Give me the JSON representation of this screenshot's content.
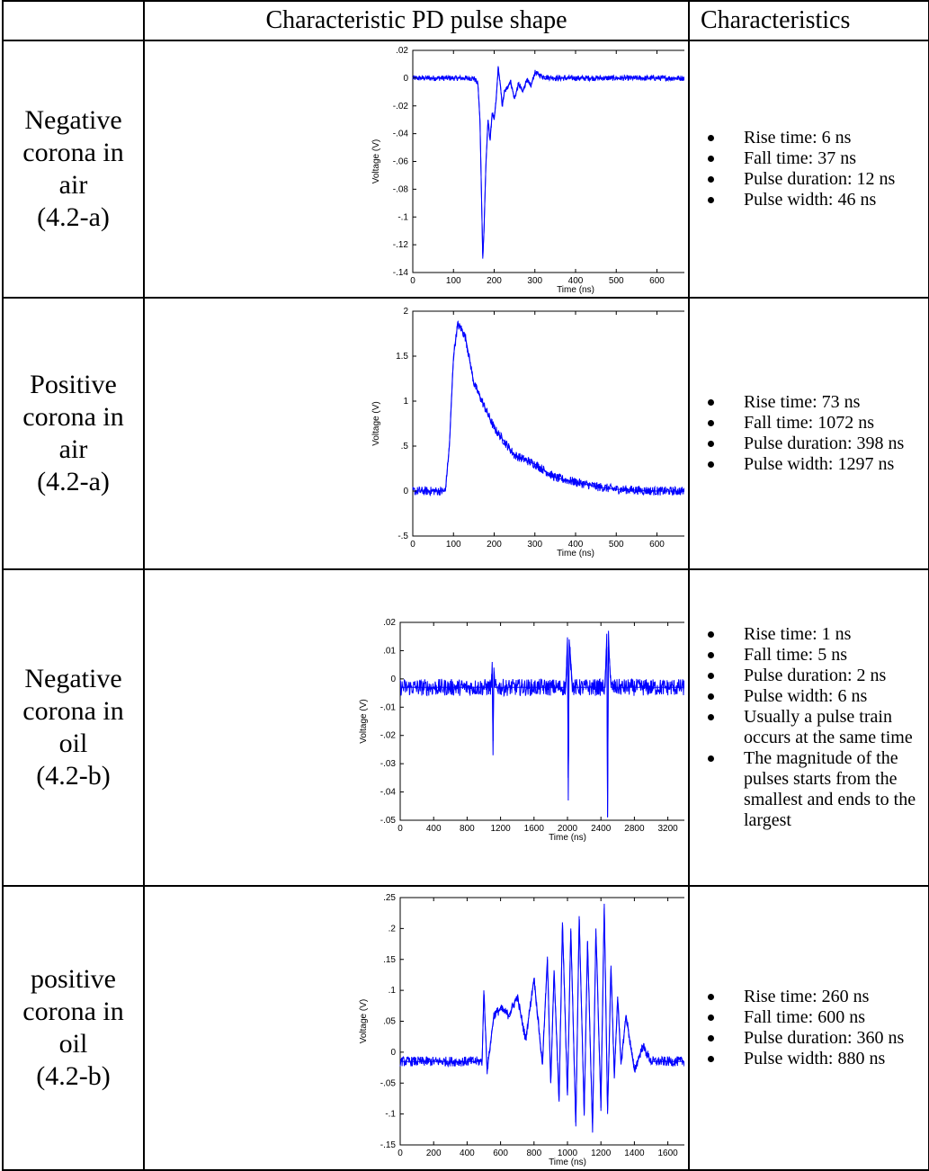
{
  "header": {
    "col_condition": "",
    "col_shape": "Characteristic PD pulse shape",
    "col_characteristics": "Characteristics"
  },
  "rows": [
    {
      "condition_lines": [
        "Negative",
        "corona in",
        "air",
        "(4.2-a)"
      ],
      "characteristics": [
        "Rise time: 6 ns",
        "Fall time: 37 ns",
        "Pulse duration: 12 ns",
        "Pulse width: 46 ns"
      ]
    },
    {
      "condition_lines": [
        "Positive",
        "corona in",
        "air",
        "(4.2-a)"
      ],
      "characteristics": [
        "Rise time: 73 ns",
        "Fall time: 1072 ns",
        "Pulse duration: 398 ns",
        "Pulse width: 1297 ns"
      ]
    },
    {
      "condition_lines": [
        "Negative",
        "corona in",
        "oil",
        "(4.2-b)"
      ],
      "characteristics": [
        "Rise time: 1 ns",
        "Fall time: 5 ns",
        "Pulse duration: 2 ns",
        "Pulse width: 6 ns",
        "Usually a pulse train occurs at the same time",
        "The magnitude of the pulses starts from the smallest and ends to  the largest"
      ]
    },
    {
      "condition_lines": [
        "positive",
        "corona in",
        "oil",
        "(4.2-b)"
      ],
      "characteristics": [
        "Rise time: 260 ns",
        "Fall time: 600 ns",
        "Pulse duration: 360 ns",
        "Pulse width: 880 ns"
      ]
    }
  ],
  "chart_data": [
    {
      "type": "line",
      "xlabel": "Time (ns)",
      "ylabel": "Voltage (V)",
      "xlim": [
        0,
        800
      ],
      "ylim": [
        -0.14,
        0.02
      ],
      "xticks": [
        0,
        100,
        200,
        300,
        400,
        500,
        600,
        700,
        800
      ],
      "yticks": [
        -0.14,
        -0.12,
        -0.1,
        -0.08,
        -0.06,
        -0.04,
        -0.02,
        0,
        0.02
      ],
      "line_color": "#0000ff",
      "series": [
        {
          "x": [
            0,
            50,
            100,
            150,
            160,
            165,
            170,
            172,
            175,
            180,
            185,
            190,
            195,
            200,
            205,
            210,
            215,
            220,
            225,
            230,
            240,
            250,
            260,
            270,
            280,
            290,
            300,
            320,
            350,
            400,
            500,
            600,
            700,
            800
          ],
          "y": [
            0,
            0,
            0,
            0,
            -0.004,
            -0.03,
            -0.1,
            -0.13,
            -0.11,
            -0.06,
            -0.03,
            -0.045,
            -0.025,
            -0.03,
            -0.015,
            0.008,
            -0.005,
            -0.02,
            -0.01,
            -0.008,
            -0.002,
            -0.015,
            -0.004,
            -0.01,
            -0.001,
            -0.006,
            0.004,
            0.001,
            0,
            0,
            0,
            0,
            0,
            0
          ],
          "noise": 0.002
        }
      ]
    },
    {
      "type": "line",
      "xlabel": "Time (ns)",
      "ylabel": "Voltage (V)",
      "xlim": [
        0,
        800
      ],
      "ylim": [
        -0.5,
        2
      ],
      "xticks": [
        0,
        100,
        200,
        300,
        400,
        500,
        600,
        700,
        800
      ],
      "yticks": [
        -0.5,
        0,
        0.5,
        1,
        1.5,
        2
      ],
      "line_color": "#0000ff",
      "series": [
        {
          "x": [
            0,
            50,
            80,
            90,
            100,
            110,
            120,
            130,
            150,
            200,
            250,
            300,
            350,
            400,
            450,
            500,
            600,
            700,
            800
          ],
          "y": [
            0,
            0,
            0,
            0.5,
            1.5,
            1.85,
            1.8,
            1.7,
            1.2,
            0.7,
            0.4,
            0.3,
            0.15,
            0.1,
            0.05,
            0.02,
            0,
            0,
            0
          ],
          "noise": 0.05
        }
      ]
    },
    {
      "type": "line",
      "xlabel": "Time (ns)",
      "ylabel": "Voltage (V)",
      "xlim": [
        0,
        4000
      ],
      "ylim": [
        -0.05,
        0.02
      ],
      "xticks": [
        0,
        400,
        800,
        1200,
        1600,
        2000,
        2400,
        2800,
        3200,
        3600,
        4000
      ],
      "yticks": [
        -0.05,
        -0.04,
        -0.03,
        -0.02,
        -0.01,
        0,
        0.01,
        0.02
      ],
      "line_color": "#0000ff",
      "series": [
        {
          "x": [
            0,
            1090,
            1100,
            1110,
            1120,
            1130,
            1980,
            2000,
            2010,
            2020,
            2040,
            2060,
            2450,
            2470,
            2480,
            2490,
            2500,
            2520,
            4000
          ],
          "y": [
            -0.003,
            -0.003,
            0.006,
            -0.027,
            0.004,
            -0.003,
            -0.003,
            0.013,
            -0.043,
            0.014,
            0.006,
            -0.003,
            -0.003,
            0.016,
            -0.049,
            0.017,
            0.008,
            -0.003,
            -0.003
          ],
          "noise": 0.003
        }
      ]
    },
    {
      "type": "line",
      "xlabel": "Time (ns)",
      "ylabel": "Voltage (V)",
      "xlim": [
        0,
        2000
      ],
      "ylim": [
        -0.15,
        0.25
      ],
      "xticks": [
        0,
        200,
        400,
        600,
        800,
        1000,
        1200,
        1400,
        1600,
        1800,
        2000
      ],
      "yticks": [
        -0.15,
        -0.1,
        -0.05,
        0,
        0.05,
        0.1,
        0.15,
        0.2,
        0.25
      ],
      "line_color": "#0000ff",
      "series": [
        {
          "x": [
            0,
            490,
            500,
            520,
            560,
            600,
            650,
            700,
            750,
            800,
            850,
            880,
            900,
            920,
            950,
            970,
            1000,
            1020,
            1050,
            1070,
            1100,
            1120,
            1150,
            1170,
            1200,
            1220,
            1240,
            1260,
            1280,
            1300,
            1320,
            1350,
            1400,
            1450,
            1500,
            2000
          ],
          "y": [
            -0.015,
            -0.015,
            0.1,
            -0.03,
            0.06,
            0.07,
            0.06,
            0.09,
            0.02,
            0.12,
            -0.02,
            0.15,
            -0.05,
            0.13,
            -0.08,
            0.21,
            -0.07,
            0.2,
            -0.12,
            0.22,
            -0.1,
            0.18,
            -0.13,
            0.2,
            -0.09,
            0.24,
            -0.1,
            0.14,
            -0.04,
            0.09,
            -0.02,
            0.06,
            -0.03,
            0.01,
            -0.015,
            -0.015
          ],
          "noise": 0.008
        }
      ]
    }
  ]
}
